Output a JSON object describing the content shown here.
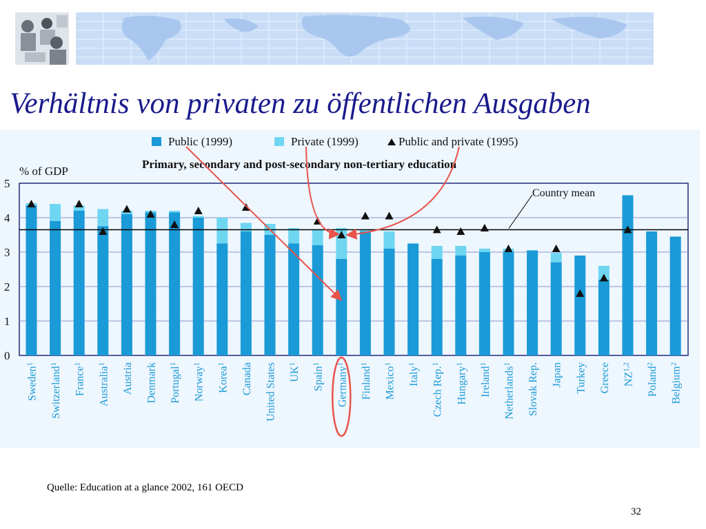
{
  "slide": {
    "title": "Verhältnis von privaten zu öffentlichen Ausgaben",
    "source": "Quelle: Education at a glance 2002, 161 OECD",
    "page_number": "32"
  },
  "colors": {
    "public": "#1a9ad6",
    "private": "#6fd6f2",
    "marker": "#111111",
    "title": "#1a1a8c",
    "axis_label": "#1a9ad6",
    "arrow": "#e8534a",
    "grid": "#8f95c8",
    "panel_bg": "#eef6fe"
  },
  "chart_data": {
    "type": "bar",
    "stacked": true,
    "title": "Primary, secondary and post-secondary non-tertiary education",
    "ylabel": "% of GDP",
    "ylim": [
      0,
      5
    ],
    "yticks": [
      "0",
      "1",
      "2",
      "3",
      "4",
      "5"
    ],
    "grid": true,
    "legend_position": "top",
    "categories": [
      "Sweden",
      "Switzerland",
      "France",
      "Australia",
      "Austria",
      "Denmark",
      "Portugal",
      "Norway",
      "Korea",
      "Canada",
      "United States",
      "UK",
      "Spain",
      "Germany",
      "Finland",
      "Mexico",
      "Italy",
      "Czech Rep.",
      "Hungary",
      "Ireland",
      "Netherlands",
      "Slovak Rep.",
      "Japan",
      "Turkey",
      "Greece",
      "NZ",
      "Poland",
      "Belgium"
    ],
    "category_superscripts": [
      "1",
      "1",
      "1",
      "1",
      "",
      "",
      "1",
      "1",
      "1",
      "",
      "",
      "1",
      "1",
      "1",
      "1",
      "1",
      "1",
      "1",
      "1",
      "1",
      "1",
      "",
      "",
      "",
      "",
      "1,2",
      "2",
      "2"
    ],
    "series": [
      {
        "name": "Public (1999)",
        "values": [
          4.35,
          3.9,
          4.2,
          3.75,
          4.1,
          4.15,
          4.15,
          4.0,
          3.25,
          3.6,
          3.5,
          3.25,
          3.2,
          2.8,
          3.6,
          3.1,
          3.25,
          2.8,
          2.9,
          3.0,
          3.0,
          3.05,
          2.7,
          2.9,
          2.2,
          4.65,
          3.6,
          3.45
        ]
      },
      {
        "name": "Private (1999)",
        "values": [
          0.07,
          0.5,
          0.15,
          0.5,
          0.1,
          0.05,
          0.05,
          0.05,
          0.75,
          0.25,
          0.32,
          0.45,
          0.45,
          0.9,
          0.05,
          0.5,
          0.0,
          0.38,
          0.28,
          0.1,
          0.1,
          0.0,
          0.28,
          0.0,
          0.4,
          0.0,
          0.0,
          0.0
        ]
      },
      {
        "name": "Public and private (1995)",
        "type": "marker",
        "values": [
          4.4,
          null,
          4.4,
          3.6,
          4.25,
          4.1,
          3.8,
          4.2,
          null,
          4.3,
          null,
          null,
          3.9,
          3.5,
          4.05,
          4.05,
          null,
          3.65,
          3.6,
          3.7,
          3.1,
          null,
          3.1,
          1.8,
          2.25,
          3.65,
          null,
          null
        ]
      }
    ],
    "reference_line": {
      "label": "Country mean",
      "value": 3.65
    },
    "highlighted_category": "Germany"
  }
}
